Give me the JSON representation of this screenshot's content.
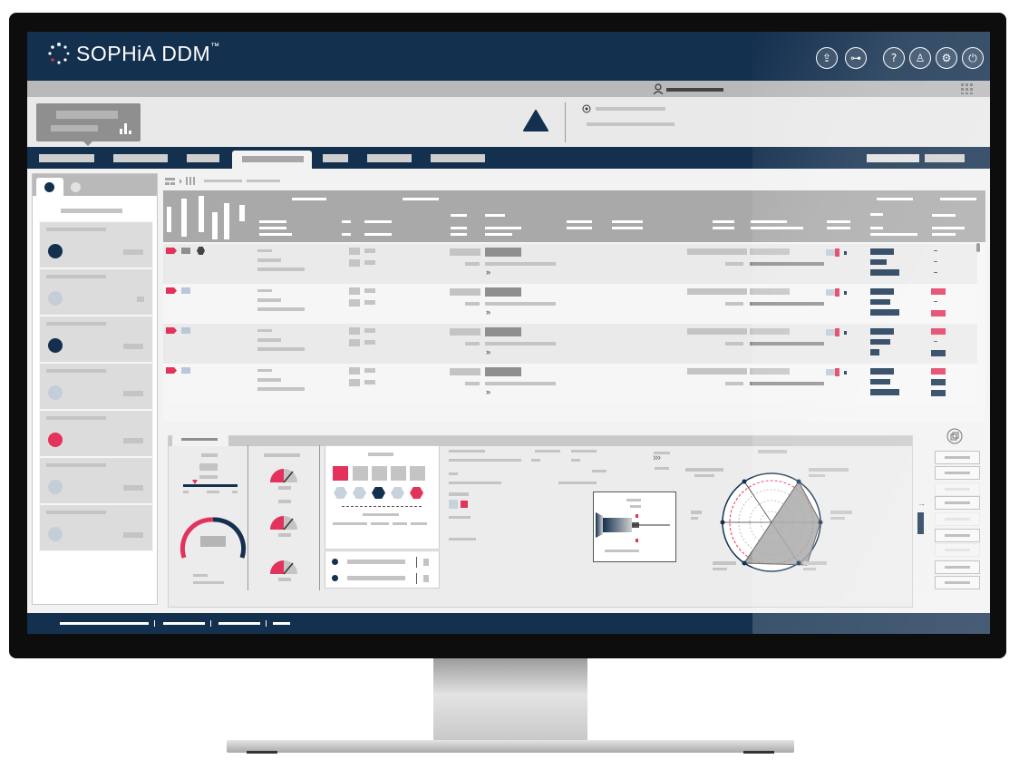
{
  "app": {
    "name": "SOPHiA DDM",
    "trademark": "™"
  },
  "toolbar": {
    "icons": [
      "upload-icon",
      "workflow-icon",
      "help-icon",
      "add-user-icon",
      "settings-icon",
      "power-icon"
    ]
  },
  "colors": {
    "navy": "#14304f",
    "accent_pink": "#e3325b",
    "placeholder_gray": "#c4c4c4",
    "dot_light": "#c5ced8"
  },
  "main": {
    "expand_marker": "»",
    "more_arrows": "›››",
    "sidebar_dots": [
      "navy",
      "light",
      "navy",
      "light",
      "pink",
      "light",
      "light"
    ]
  }
}
